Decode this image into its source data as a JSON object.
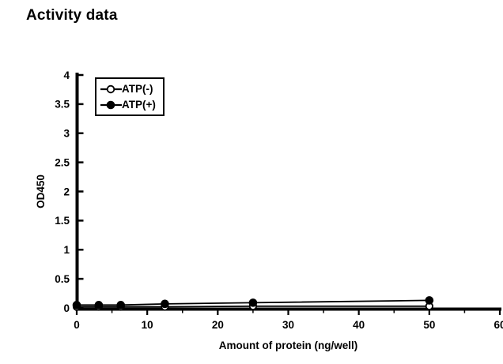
{
  "title": "Activity data",
  "colors": {
    "foreground": "#000000",
    "background": "#ffffff"
  },
  "chart_data": {
    "type": "line",
    "title": "Activity data",
    "xlabel": "Amount of protein (ng/well)",
    "ylabel": "OD450",
    "xlim": [
      0,
      60
    ],
    "ylim": [
      0,
      4
    ],
    "grid": false,
    "x": [
      0,
      3.125,
      6.25,
      12.5,
      25,
      50
    ],
    "series": [
      {
        "name": "ATP(-)",
        "marker": "open-circle",
        "values": [
          0.02,
          0.02,
          0.02,
          0.02,
          0.03,
          0.03
        ]
      },
      {
        "name": "ATP(+)",
        "marker": "filled-circle",
        "values": [
          0.05,
          0.05,
          0.05,
          0.07,
          0.09,
          0.13
        ]
      }
    ],
    "x_major_ticks": [
      0,
      10,
      20,
      30,
      40,
      50,
      60
    ],
    "x_tick_labels": [
      "0",
      "10",
      "20",
      "30",
      "40",
      "50",
      "60"
    ],
    "x_minor_ticks": [
      5,
      15,
      25,
      35,
      45,
      55
    ],
    "y_ticks": [
      0,
      0.5,
      1,
      1.5,
      2,
      2.5,
      3,
      3.5,
      4
    ],
    "y_tick_labels": [
      "0",
      "0.5",
      "1",
      "1.5",
      "2",
      "2.5",
      "3",
      "3.5",
      "4"
    ],
    "legend": {
      "position": "top-left-inside",
      "entries": [
        "ATP(-)",
        "ATP(+)"
      ]
    }
  }
}
